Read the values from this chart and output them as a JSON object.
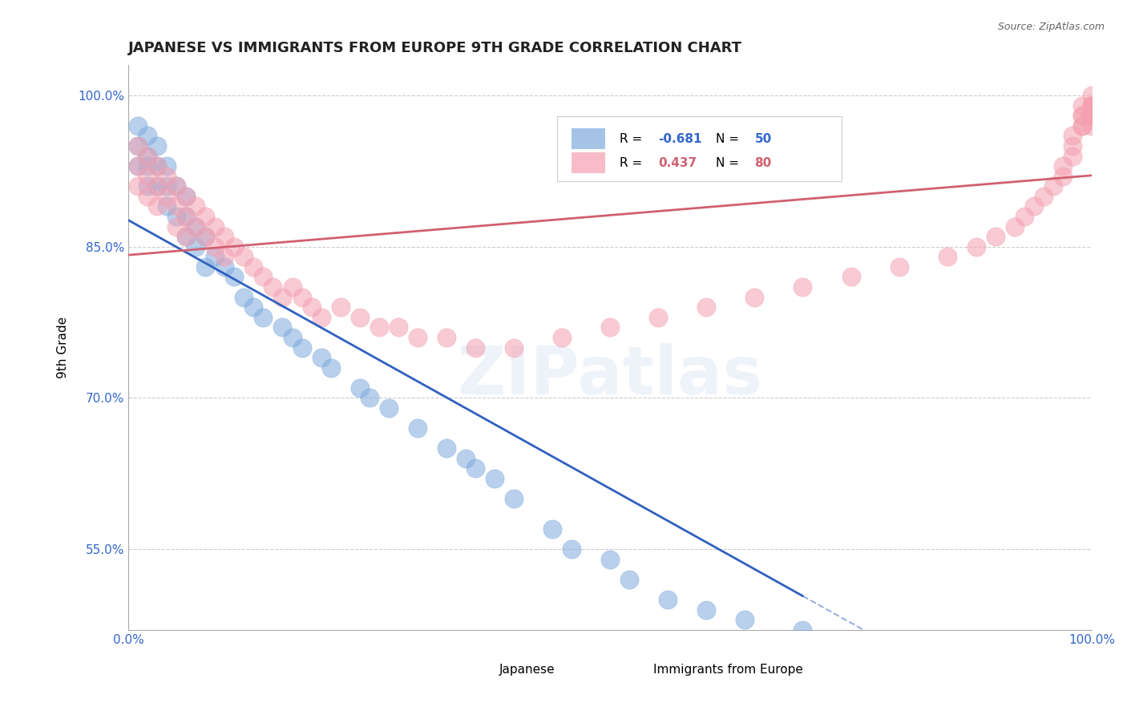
{
  "title": "JAPANESE VS IMMIGRANTS FROM EUROPE 9TH GRADE CORRELATION CHART",
  "source_text": "Source: ZipAtlas.com",
  "ylabel": "9th Grade",
  "watermark": "ZIPatlas",
  "xlim": [
    0.0,
    1.0
  ],
  "ylim": [
    0.47,
    1.03
  ],
  "blue_R": -0.681,
  "blue_N": 50,
  "pink_R": 0.437,
  "pink_N": 80,
  "legend_label_blue": "Japanese",
  "legend_label_pink": "Immigrants from Europe",
  "blue_color": "#7FAADD",
  "pink_color": "#F4A0B0",
  "blue_line_color": "#3060C0",
  "pink_line_color": "#D06070",
  "grid_color": "#CCCCCC",
  "blue_scatter_x": [
    0.01,
    0.01,
    0.01,
    0.02,
    0.02,
    0.02,
    0.02,
    0.03,
    0.03,
    0.03,
    0.04,
    0.04,
    0.04,
    0.05,
    0.05,
    0.06,
    0.06,
    0.06,
    0.07,
    0.07,
    0.08,
    0.08,
    0.09,
    0.1,
    0.11,
    0.12,
    0.13,
    0.14,
    0.16,
    0.17,
    0.18,
    0.2,
    0.21,
    0.24,
    0.25,
    0.27,
    0.3,
    0.33,
    0.35,
    0.36,
    0.38,
    0.4,
    0.44,
    0.46,
    0.5,
    0.52,
    0.56,
    0.6,
    0.64,
    0.7
  ],
  "blue_scatter_y": [
    0.97,
    0.95,
    0.93,
    0.96,
    0.94,
    0.93,
    0.91,
    0.95,
    0.93,
    0.91,
    0.93,
    0.91,
    0.89,
    0.91,
    0.88,
    0.9,
    0.88,
    0.86,
    0.87,
    0.85,
    0.86,
    0.83,
    0.84,
    0.83,
    0.82,
    0.8,
    0.79,
    0.78,
    0.77,
    0.76,
    0.75,
    0.74,
    0.73,
    0.71,
    0.7,
    0.69,
    0.67,
    0.65,
    0.64,
    0.63,
    0.62,
    0.6,
    0.57,
    0.55,
    0.54,
    0.52,
    0.5,
    0.49,
    0.48,
    0.47
  ],
  "pink_scatter_x": [
    0.01,
    0.01,
    0.01,
    0.02,
    0.02,
    0.02,
    0.03,
    0.03,
    0.03,
    0.04,
    0.04,
    0.05,
    0.05,
    0.05,
    0.06,
    0.06,
    0.06,
    0.07,
    0.07,
    0.08,
    0.08,
    0.09,
    0.09,
    0.1,
    0.1,
    0.11,
    0.12,
    0.13,
    0.14,
    0.15,
    0.16,
    0.17,
    0.18,
    0.19,
    0.2,
    0.22,
    0.24,
    0.26,
    0.28,
    0.3,
    0.33,
    0.36,
    0.4,
    0.45,
    0.5,
    0.55,
    0.6,
    0.65,
    0.7,
    0.75,
    0.8,
    0.85,
    0.88,
    0.9,
    0.92,
    0.93,
    0.94,
    0.95,
    0.96,
    0.97,
    0.97,
    0.98,
    0.98,
    0.98,
    0.99,
    0.99,
    0.99,
    0.99,
    0.99,
    1.0,
    1.0,
    1.0,
    1.0,
    1.0,
    1.0,
    1.0,
    1.0,
    1.0,
    1.0,
    1.0
  ],
  "pink_scatter_y": [
    0.95,
    0.93,
    0.91,
    0.94,
    0.92,
    0.9,
    0.93,
    0.91,
    0.89,
    0.92,
    0.9,
    0.91,
    0.89,
    0.87,
    0.9,
    0.88,
    0.86,
    0.89,
    0.87,
    0.88,
    0.86,
    0.87,
    0.85,
    0.86,
    0.84,
    0.85,
    0.84,
    0.83,
    0.82,
    0.81,
    0.8,
    0.81,
    0.8,
    0.79,
    0.78,
    0.79,
    0.78,
    0.77,
    0.77,
    0.76,
    0.76,
    0.75,
    0.75,
    0.76,
    0.77,
    0.78,
    0.79,
    0.8,
    0.81,
    0.82,
    0.83,
    0.84,
    0.85,
    0.86,
    0.87,
    0.88,
    0.89,
    0.9,
    0.91,
    0.92,
    0.93,
    0.94,
    0.95,
    0.96,
    0.97,
    0.98,
    0.97,
    0.98,
    0.99,
    0.98,
    0.99,
    0.97,
    0.98,
    0.99,
    0.98,
    0.99,
    0.98,
    0.99,
    0.98,
    1.0
  ]
}
